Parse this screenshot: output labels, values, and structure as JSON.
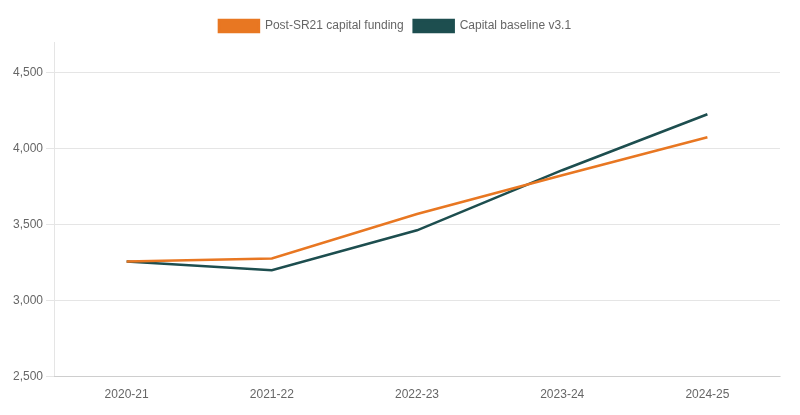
{
  "chart_data": {
    "type": "line",
    "categories": [
      "2020-21",
      "2021-22",
      "2022-23",
      "2023-24",
      "2024-25"
    ],
    "series": [
      {
        "name": "Post-SR21 capital funding",
        "color": "#E87722",
        "values": [
          3256,
          3277,
          3569,
          3824,
          4074
        ]
      },
      {
        "name": "Capital baseline v3.1",
        "color": "#1D4E4F",
        "values": [
          3257,
          3199,
          3462,
          3857,
          4225
        ]
      }
    ],
    "ylim": [
      2500,
      4700
    ],
    "yticks": [
      {
        "value": 2500,
        "label": "2,500"
      },
      {
        "value": 3000,
        "label": "3,000"
      },
      {
        "value": 3500,
        "label": "3,500"
      },
      {
        "value": 4000,
        "label": "4,000"
      },
      {
        "value": 4500,
        "label": "4,500"
      }
    ],
    "grid": true,
    "legend": "top"
  }
}
